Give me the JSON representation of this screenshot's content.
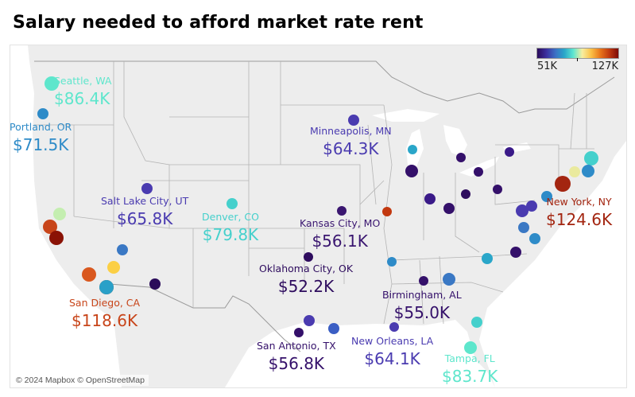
{
  "title": "Salary needed to afford market rate rent",
  "attribution": "© 2024 Mapbox © OpenStreetMap",
  "legend": {
    "min_label": "51K",
    "max_label": "127K",
    "colorscale": [
      "#2a0b5a",
      "#3b2f9e",
      "#3b6fc4",
      "#2aa6c9",
      "#5ee6d0",
      "#f8eea0",
      "#fbbf45",
      "#e8751a",
      "#c0390f",
      "#7c0a05"
    ]
  },
  "labeled_cities": [
    {
      "name": "Seattle, WA",
      "value": "$86.4K",
      "color": "#5ee6cc"
    },
    {
      "name": "Portland, OR",
      "value": "$71.5K",
      "color": "#2e8bc8"
    },
    {
      "name": "Minneapolis, MN",
      "value": "$64.3K",
      "color": "#4a3bb0"
    },
    {
      "name": "Salt Lake City, UT",
      "value": "$65.8K",
      "color": "#4a3bb0"
    },
    {
      "name": "Denver, CO",
      "value": "$79.8K",
      "color": "#45d0cc"
    },
    {
      "name": "Kansas City, MO",
      "value": "$56.1K",
      "color": "#3a1670"
    },
    {
      "name": "Oklahoma City, OK",
      "value": "$52.2K",
      "color": "#2e0c5e"
    },
    {
      "name": "San Diego, CA",
      "value": "$118.6K",
      "color": "#c8451a"
    },
    {
      "name": "New York, NY",
      "value": "$124.6K",
      "color": "#a32510"
    },
    {
      "name": "Birmingham, AL",
      "value": "$55.0K",
      "color": "#34106a"
    },
    {
      "name": "San Antonio, TX",
      "value": "$56.8K",
      "color": "#34106a"
    },
    {
      "name": "New Orleans, LA",
      "value": "$64.1K",
      "color": "#4a3bb0"
    },
    {
      "name": "Tampa, FL",
      "value": "$83.7K",
      "color": "#5ee6cc"
    }
  ],
  "points": [
    {
      "city": "Seattle, WA",
      "color": "#5ee6cc"
    },
    {
      "city": "Portland, OR",
      "color": "#2e8bc8"
    },
    {
      "city": "Minneapolis, MN",
      "color": "#4a3bb0"
    },
    {
      "city": "Salt Lake City, UT",
      "color": "#4a3bb0"
    },
    {
      "city": "Denver, CO",
      "color": "#45d0cc"
    },
    {
      "city": "Kansas City, MO",
      "color": "#3a1670"
    },
    {
      "city": "Oklahoma City, OK",
      "color": "#2e0c5e"
    },
    {
      "city": "San Diego, CA",
      "color": "#c8451a"
    },
    {
      "city": "New York, NY",
      "color": "#a32510"
    },
    {
      "city": "Birmingham, AL",
      "color": "#34106a"
    },
    {
      "city": "San Antonio, TX",
      "color": "#34106a"
    },
    {
      "city": "New Orleans, LA",
      "color": "#4a3bb0"
    },
    {
      "city": "Tampa, FL",
      "color": "#5ee6cc"
    },
    {
      "city": "",
      "color": "#c4eeb0"
    },
    {
      "city": "",
      "color": "#c8451a"
    },
    {
      "city": "",
      "color": "#8a1205"
    },
    {
      "city": "",
      "color": "#3a78c4"
    },
    {
      "city": "",
      "color": "#fbcf45"
    },
    {
      "city": "",
      "color": "#d9581f"
    },
    {
      "city": "",
      "color": "#2aa0c8"
    },
    {
      "city": "",
      "color": "#2a0b5a"
    },
    {
      "city": "",
      "color": "#2aa6c9"
    },
    {
      "city": "",
      "color": "#34106a"
    },
    {
      "city": "",
      "color": "#34106a"
    },
    {
      "city": "",
      "color": "#34106a"
    },
    {
      "city": "",
      "color": "#3a1a88"
    },
    {
      "city": "",
      "color": "#3a1a88"
    },
    {
      "city": "",
      "color": "#34106a"
    },
    {
      "city": "",
      "color": "#2e0c5e"
    },
    {
      "city": "",
      "color": "#34106a"
    },
    {
      "city": "",
      "color": "#c2380f"
    },
    {
      "city": "",
      "color": "#2e8bc8"
    },
    {
      "city": "",
      "color": "#45d0cc"
    },
    {
      "city": "",
      "color": "#2e8bc8"
    },
    {
      "city": "",
      "color": "#eaea9e"
    },
    {
      "city": "",
      "color": "#2e8bc8"
    },
    {
      "city": "",
      "color": "#4a3bb0"
    },
    {
      "city": "",
      "color": "#4a3bb0"
    },
    {
      "city": "",
      "color": "#3a78c4"
    },
    {
      "city": "",
      "color": "#2e8bc8"
    },
    {
      "city": "",
      "color": "#2aa6c9"
    },
    {
      "city": "",
      "color": "#34106a"
    },
    {
      "city": "",
      "color": "#3a78c4"
    },
    {
      "city": "",
      "color": "#4a3bb0"
    },
    {
      "city": "",
      "color": "#3a5ec4"
    },
    {
      "city": "",
      "color": "#45d0cc"
    }
  ]
}
